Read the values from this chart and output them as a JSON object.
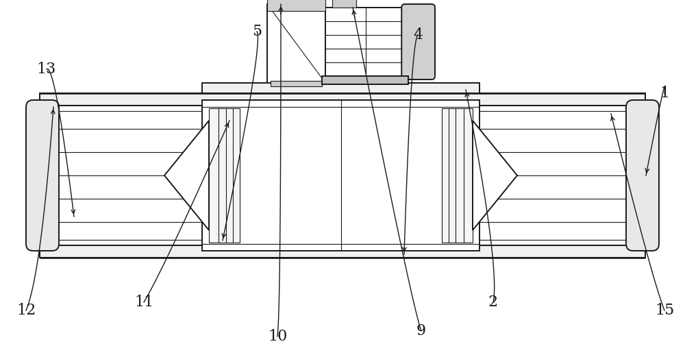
{
  "bg_color": "#ffffff",
  "line_color": "#1a1a1a",
  "line_width": 1.4,
  "thin_line": 0.8,
  "label_fontsize": 16
}
